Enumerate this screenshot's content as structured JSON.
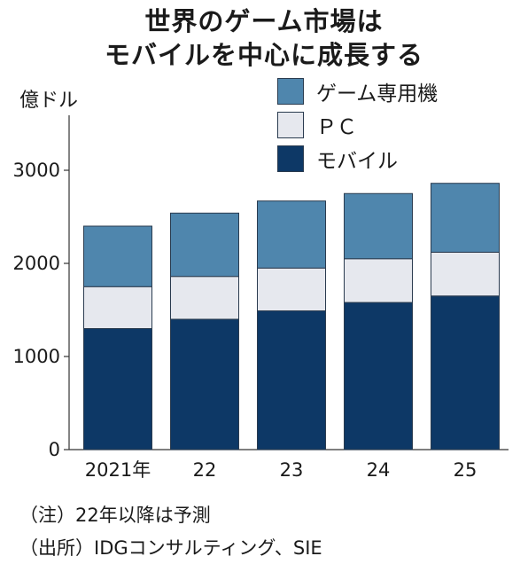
{
  "chart_data": {
    "type": "bar",
    "stacked": true,
    "title": "世界のゲーム市場はモバイルを中心に成長する",
    "title_lines": [
      "世界のゲーム市場は",
      "モバイルを中心に成長する"
    ],
    "unit": "億ドル",
    "categories": [
      "2021年",
      "22",
      "23",
      "24",
      "25"
    ],
    "series": [
      {
        "name": "モバイル",
        "color": "#0d3866",
        "values": [
          1300,
          1400,
          1490,
          1580,
          1650
        ]
      },
      {
        "name": "ＰＣ",
        "color": "#e6e8ee",
        "values": [
          450,
          460,
          460,
          470,
          470
        ]
      },
      {
        "name": "ゲーム専用機",
        "color": "#4f86ad",
        "values": [
          650,
          680,
          720,
          700,
          740
        ]
      }
    ],
    "legend_order": [
      "ゲーム専用機",
      "ＰＣ",
      "モバイル"
    ],
    "ylim": [
      0,
      3000
    ],
    "yticks": [
      0,
      1000,
      2000,
      3000
    ],
    "grid": false,
    "legend_position": "top-right"
  },
  "notes": {
    "note1": "（注）22年以降は予測",
    "note2": "（出所）IDGコンサルティング、SIE"
  }
}
